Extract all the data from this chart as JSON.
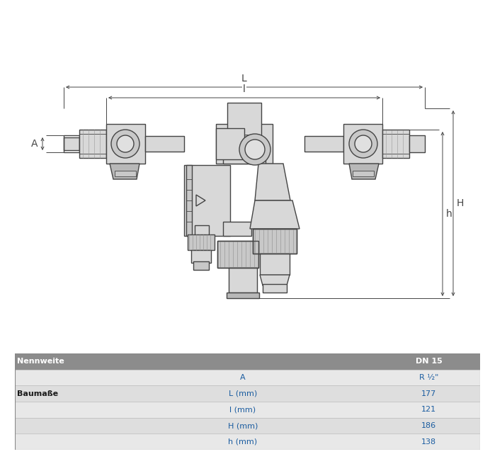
{
  "table": {
    "header_label": "Nennweite",
    "header_value": "DN 15",
    "header_bg": "#8c8c8c",
    "header_text_color": "#ffffff",
    "row_bg_even": "#e8e8e8",
    "row_bg_odd": "#dedede",
    "row_text_color": "#1a5ca0",
    "left_bold_color": "#1a1a1a",
    "rows": [
      {
        "left": "",
        "mid": "A",
        "right": "R ½\""
      },
      {
        "left": "Baumaße",
        "mid": "L (mm)",
        "right": "177"
      },
      {
        "left": "",
        "mid": "l (mm)",
        "right": "121"
      },
      {
        "left": "",
        "mid": "H (mm)",
        "right": "186"
      },
      {
        "left": "",
        "mid": "h (mm)",
        "right": "138"
      }
    ]
  },
  "bg_color": "#ffffff",
  "line_color": "#444444",
  "dim_color": "#444444",
  "dim_labels": [
    "L",
    "l",
    "A",
    "H",
    "h"
  ]
}
